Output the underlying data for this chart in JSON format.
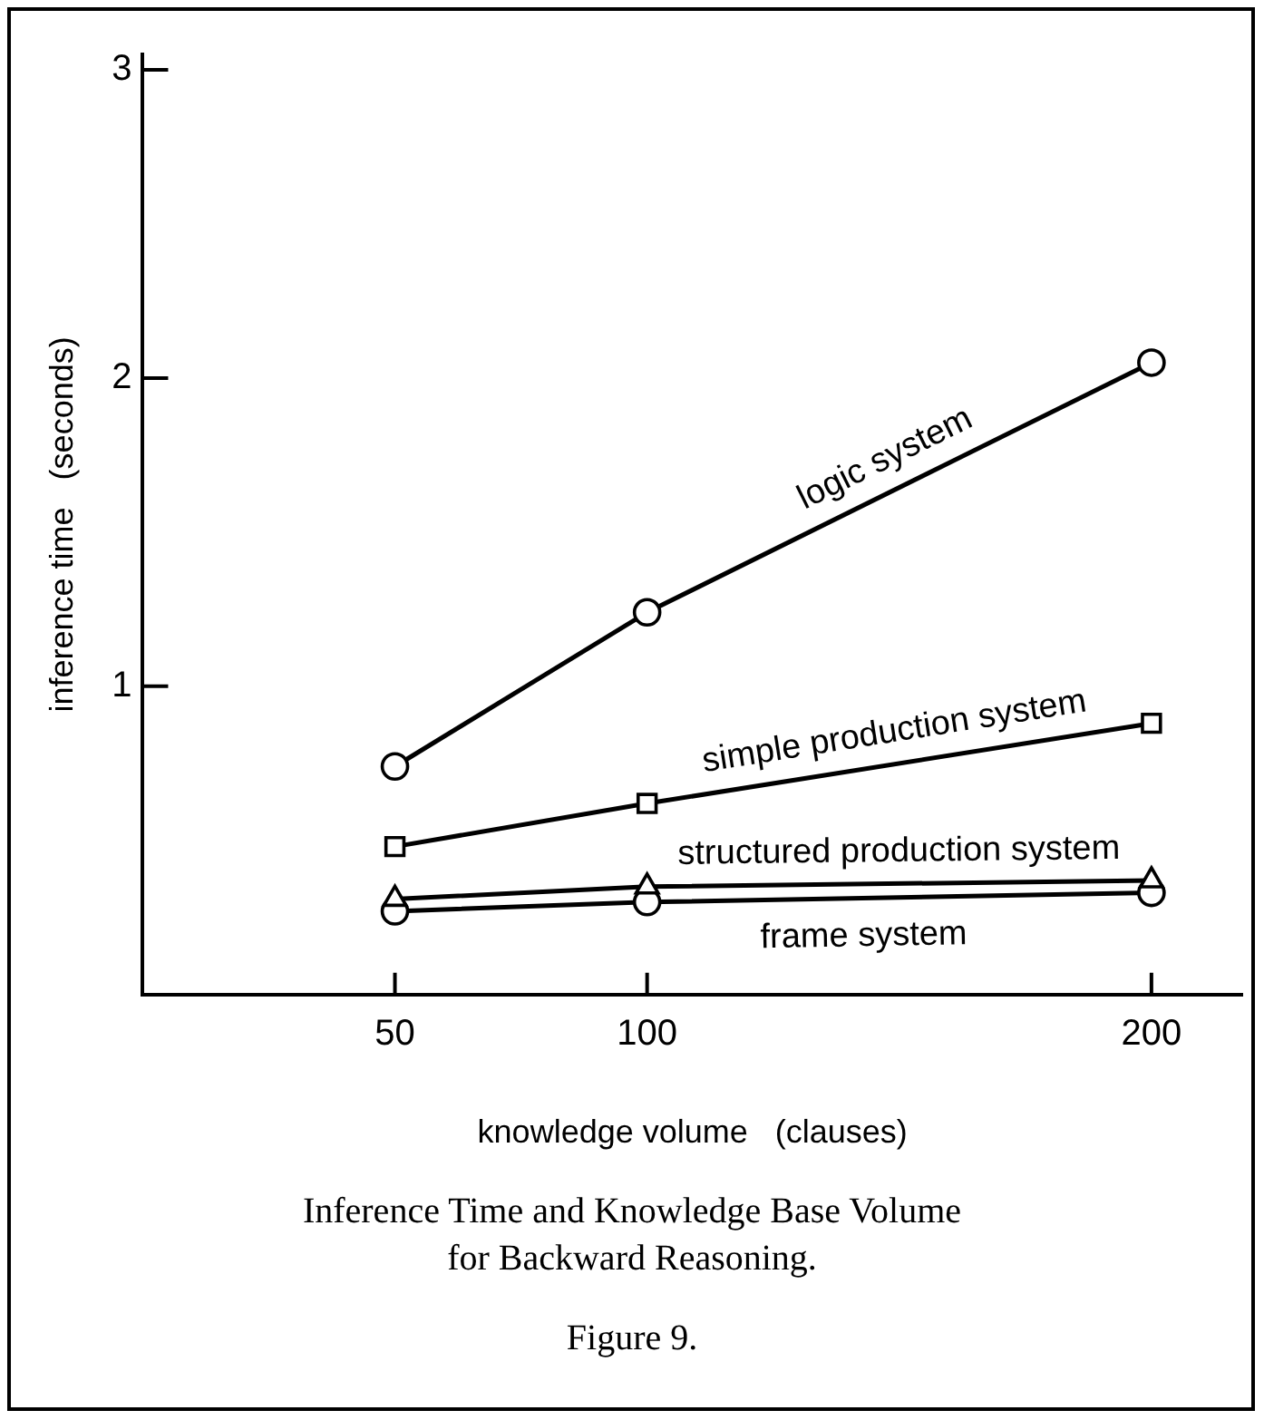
{
  "chart_data": {
    "type": "line",
    "xlabel": "knowledge volume   (clauses)",
    "ylabel": "inference time   (seconds)",
    "x": [
      50,
      100,
      200
    ],
    "xlim": [
      0,
      218
    ],
    "xticks": [
      50,
      100,
      200
    ],
    "ylim": [
      0,
      3.05
    ],
    "yticks": [
      1,
      2,
      3
    ],
    "grid": false,
    "legend": false,
    "line_style": "solid",
    "series": [
      {
        "name": "logic system",
        "color": "#000000",
        "marker": "circle",
        "values": [
          0.74,
          1.24,
          2.05
        ]
      },
      {
        "name": "simple production system",
        "color": "#000000",
        "marker": "square",
        "values": [
          0.48,
          0.62,
          0.88
        ]
      },
      {
        "name": "structured production system",
        "color": "#000000",
        "marker": "triangle",
        "values": [
          0.31,
          0.35,
          0.37
        ]
      },
      {
        "name": "frame system",
        "color": "#000000",
        "marker": "circle",
        "values": [
          0.27,
          0.3,
          0.33
        ]
      }
    ],
    "annotations": [
      "Inference Time and Knowledge Base Volume\nfor Backward Reasoning.",
      "Figure 9."
    ]
  }
}
